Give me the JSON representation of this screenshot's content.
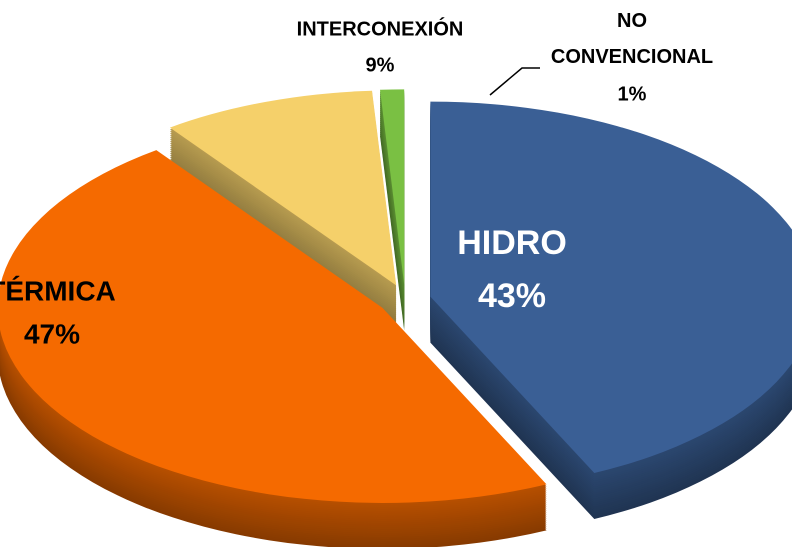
{
  "chart_data": {
    "type": "pie",
    "categories": [
      "NO CONVENCIONAL",
      "HIDRO",
      "TÉRMICA",
      "INTERCONEXIÓN"
    ],
    "values": [
      1,
      43,
      47,
      9
    ],
    "value_labels": [
      "1%",
      "43%",
      "47%",
      "9%"
    ],
    "colors": [
      "#7ac043",
      "#3a5f95",
      "#f56a00",
      "#f5d06a"
    ]
  }
}
